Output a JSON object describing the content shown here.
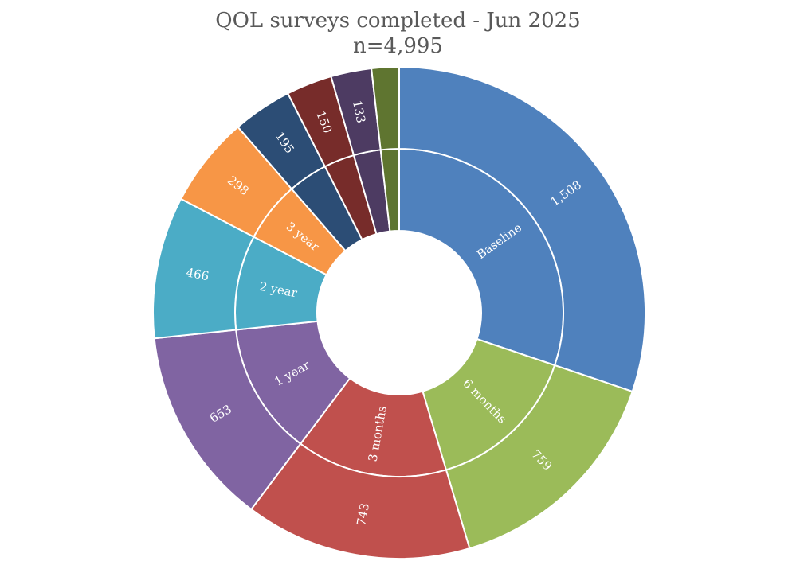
{
  "chart_data": {
    "type": "sunburst",
    "title": "QOL surveys completed - Jun 2025",
    "subtitle": "n=4,995",
    "total": 4995,
    "segments": [
      {
        "name": "Baseline",
        "value": 1508,
        "value_label": "1,508",
        "color": "#4F81BD",
        "show_name": true,
        "show_value": true
      },
      {
        "name": "6 months",
        "value": 759,
        "value_label": "759",
        "color": "#9BBB59",
        "show_name": true,
        "show_value": true
      },
      {
        "name": "3 months",
        "value": 743,
        "value_label": "743",
        "color": "#C0504D",
        "show_name": true,
        "show_value": true
      },
      {
        "name": "1 year",
        "value": 653,
        "value_label": "653",
        "color": "#8064A2",
        "show_name": true,
        "show_value": true
      },
      {
        "name": "2 year",
        "value": 466,
        "value_label": "466",
        "color": "#4BACC6",
        "show_name": true,
        "show_value": true
      },
      {
        "name": "3 year",
        "value": 298,
        "value_label": "298",
        "color": "#F79646",
        "show_name": true,
        "show_value": true
      },
      {
        "name": "",
        "value": 195,
        "value_label": "195",
        "color": "#2C4D75",
        "show_name": false,
        "show_value": true
      },
      {
        "name": "",
        "value": 150,
        "value_label": "150",
        "color": "#772C2A",
        "show_name": false,
        "show_value": true
      },
      {
        "name": "",
        "value": 133,
        "value_label": "133",
        "color": "#4D3B62",
        "show_name": false,
        "show_value": true
      },
      {
        "name": "",
        "value": 90,
        "value_label": "",
        "color": "#5F7530",
        "show_name": false,
        "show_value": false
      }
    ]
  }
}
